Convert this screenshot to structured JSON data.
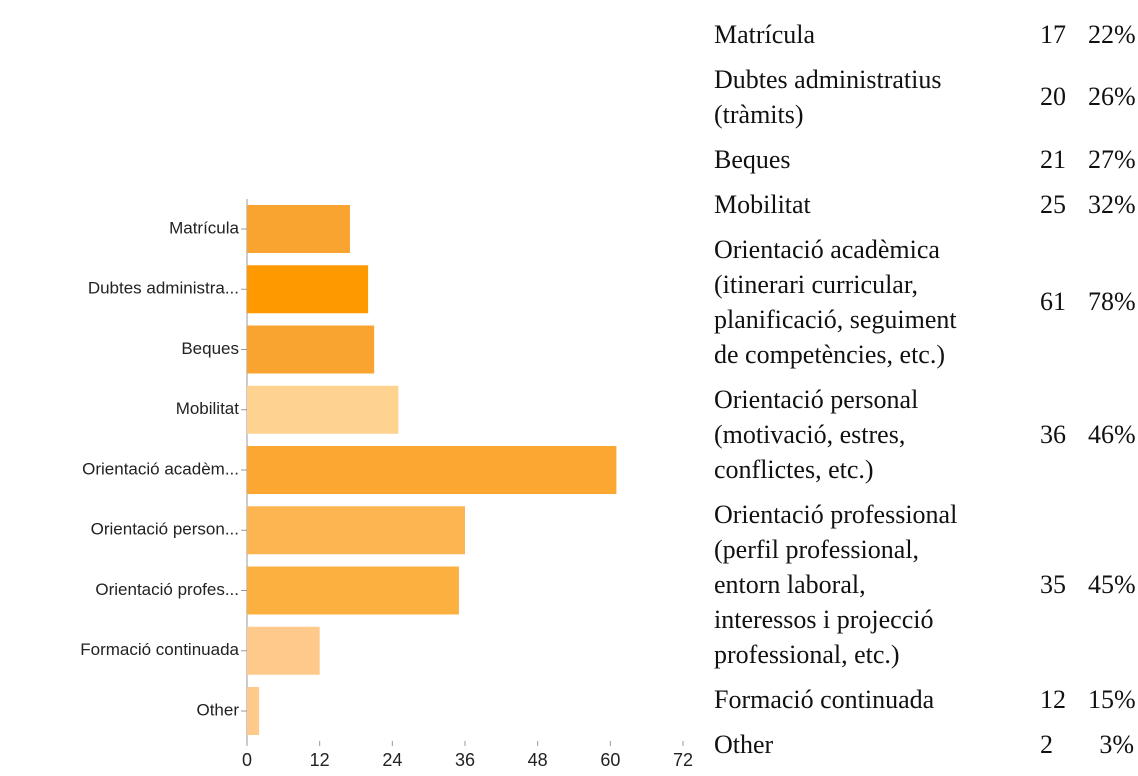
{
  "chart_data": {
    "type": "bar",
    "orientation": "horizontal",
    "categories": [
      "Matrícula",
      "Dubtes administra...",
      "Beques",
      "Mobilitat",
      "Orientació acadèm...",
      "Orientació person...",
      "Orientació profes...",
      "Formació continuada",
      "Other"
    ],
    "values": [
      17,
      20,
      21,
      25,
      61,
      36,
      35,
      12,
      2
    ],
    "colors": [
      "#f9a431",
      "#ff9900",
      "#f9a431",
      "#fdd38f",
      "#fba731",
      "#fdb552",
      "#fcb040",
      "#fec98a",
      "#fec98a"
    ],
    "xlim": [
      0,
      72
    ],
    "xticks": [
      0,
      12,
      24,
      36,
      48,
      60,
      72
    ]
  },
  "table": {
    "rows": [
      {
        "label": [
          "Matrícula"
        ],
        "count": "17",
        "percent": "22%"
      },
      {
        "label": [
          "Dubtes administratius",
          "(tràmits)"
        ],
        "count": "20",
        "percent": "26%"
      },
      {
        "label": [
          "Beques"
        ],
        "count": "21",
        "percent": "27%"
      },
      {
        "label": [
          "Mobilitat"
        ],
        "count": "25",
        "percent": "32%"
      },
      {
        "label": [
          "Orientació acadèmica",
          "(itinerari curricular,",
          "planificació, seguiment",
          "de competències, etc.)"
        ],
        "count": "61",
        "percent": "78%"
      },
      {
        "label": [
          "Orientació personal",
          "(motivació, estres,",
          "conflictes, etc.)"
        ],
        "count": "36",
        "percent": "46%"
      },
      {
        "label": [
          "Orientació professional",
          "(perfil professional,",
          "entorn laboral,",
          "interessos i projecció",
          "professional, etc.)"
        ],
        "count": "35",
        "percent": "45%"
      },
      {
        "label": [
          "Formació continuada"
        ],
        "count": "12",
        "percent": "15%"
      },
      {
        "label": [
          "Other"
        ],
        "count": "2",
        "percent": "3%"
      }
    ]
  }
}
